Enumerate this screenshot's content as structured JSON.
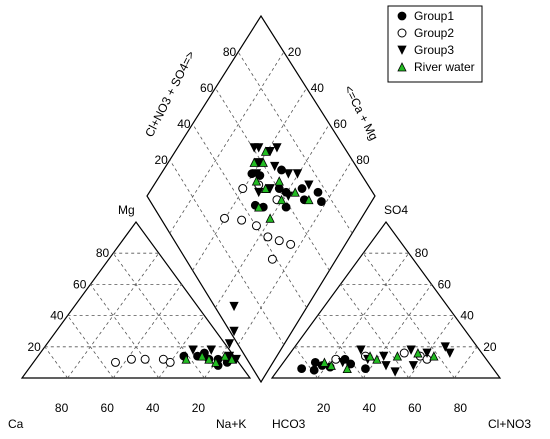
{
  "chart_data": {
    "type": "scatter",
    "title": "",
    "legend": {
      "placement": "top-right",
      "entries": [
        {
          "name": "Group1",
          "marker": "filled-circle",
          "color": "#000000"
        },
        {
          "name": "Group2",
          "marker": "open-circle",
          "color": "#000000"
        },
        {
          "name": "Group3",
          "marker": "filled-triangle-down",
          "color": "#000000"
        },
        {
          "name": "River water",
          "marker": "filled-triangle-up",
          "color": "#22bb22"
        }
      ]
    },
    "cation_triangle": {
      "corner_labels": {
        "left": "Ca",
        "right": "Na+K",
        "top": "Mg"
      },
      "bottom_ticks": [
        "80",
        "60",
        "40",
        "20"
      ],
      "left_ticks": [
        "20",
        "40",
        "60",
        "80"
      ]
    },
    "anion_triangle": {
      "corner_labels": {
        "left": "HCO3",
        "right": "Cl+NO3",
        "top": "SO4"
      },
      "bottom_ticks": [
        "20",
        "40",
        "60",
        "80"
      ],
      "right_ticks": [
        "20",
        "40",
        "60",
        "80"
      ]
    },
    "diamond": {
      "left_axis_label": "Cl+NO3 + SO4=>",
      "right_axis_label": "<=Ca + Mg",
      "left_ticks": [
        "20",
        "40",
        "60",
        "80"
      ],
      "right_ticks": [
        "20",
        "40",
        "60",
        "80"
      ]
    },
    "series": [
      {
        "name": "Group1",
        "cation": [
          [
            82,
            8
          ],
          [
            76,
            12
          ],
          [
            70,
            14
          ],
          [
            64,
            14
          ],
          [
            80,
            12
          ],
          [
            85,
            10
          ],
          [
            72,
            16
          ]
        ],
        "anion": [
          [
            10,
            6
          ],
          [
            14,
            10
          ],
          [
            18,
            8
          ],
          [
            26,
            12
          ],
          [
            38,
            6
          ],
          [
            30,
            9
          ],
          [
            22,
            7
          ],
          [
            16,
            5
          ]
        ],
        "diamond": [
          [
            45,
            50
          ],
          [
            48,
            46
          ],
          [
            58,
            36
          ],
          [
            62,
            40
          ],
          [
            68,
            30
          ],
          [
            70,
            34
          ],
          [
            76,
            26
          ],
          [
            66,
            48
          ],
          [
            60,
            44
          ],
          [
            55,
            56
          ],
          [
            52,
            60
          ],
          [
            75,
            22
          ]
        ]
      },
      {
        "name": "Group2",
        "cation": [
          [
            56,
            12
          ],
          [
            48,
            12
          ],
          [
            42,
            12
          ],
          [
            36,
            10
          ],
          [
            60,
            10
          ]
        ],
        "anion": [
          [
            22,
            12
          ],
          [
            34,
            14
          ],
          [
            50,
            16
          ],
          [
            58,
            14
          ],
          [
            62,
            12
          ]
        ],
        "diamond": [
          [
            28,
            60
          ],
          [
            35,
            52
          ],
          [
            40,
            44
          ],
          [
            42,
            36
          ],
          [
            46,
            30
          ],
          [
            50,
            24
          ],
          [
            38,
            28
          ],
          [
            56,
            42
          ],
          [
            52,
            54
          ],
          [
            44,
            60
          ]
        ]
      },
      {
        "name": "Group3",
        "cation": [
          [
            70,
            46
          ],
          [
            78,
            30
          ],
          [
            80,
            22
          ],
          [
            84,
            14
          ],
          [
            88,
            12
          ],
          [
            74,
            18
          ],
          [
            66,
            18
          ]
        ],
        "anion": [
          [
            30,
            18
          ],
          [
            42,
            14
          ],
          [
            52,
            18
          ],
          [
            60,
            16
          ],
          [
            66,
            20
          ],
          [
            70,
            16
          ],
          [
            46,
            8
          ],
          [
            52,
            4
          ],
          [
            26,
            10
          ],
          [
            36,
            12
          ],
          [
            58,
            8
          ]
        ],
        "diamond": [
          [
            50,
            52
          ],
          [
            54,
            58
          ],
          [
            58,
            60
          ],
          [
            60,
            66
          ],
          [
            62,
            64
          ],
          [
            66,
            58
          ],
          [
            64,
            52
          ],
          [
            68,
            44
          ],
          [
            72,
            40
          ],
          [
            70,
            56
          ],
          [
            56,
            48
          ],
          [
            74,
            32
          ],
          [
            62,
            38
          ]
        ]
      },
      {
        "name": "River water",
        "cation": [
          [
            86,
            12
          ],
          [
            80,
            10
          ],
          [
            76,
            12
          ],
          [
            72,
            14
          ],
          [
            66,
            12
          ],
          [
            82,
            14
          ]
        ],
        "anion": [
          [
            18,
            10
          ],
          [
            22,
            8
          ],
          [
            36,
            14
          ],
          [
            40,
            12
          ],
          [
            48,
            14
          ],
          [
            56,
            16
          ],
          [
            64,
            14
          ],
          [
            30,
            6
          ]
        ],
        "diamond": [
          [
            46,
            48
          ],
          [
            52,
            56
          ],
          [
            56,
            62
          ],
          [
            60,
            58
          ],
          [
            64,
            60
          ],
          [
            62,
            46
          ],
          [
            58,
            40
          ],
          [
            66,
            36
          ],
          [
            70,
            28
          ],
          [
            54,
            50
          ],
          [
            48,
            40
          ]
        ]
      }
    ]
  }
}
